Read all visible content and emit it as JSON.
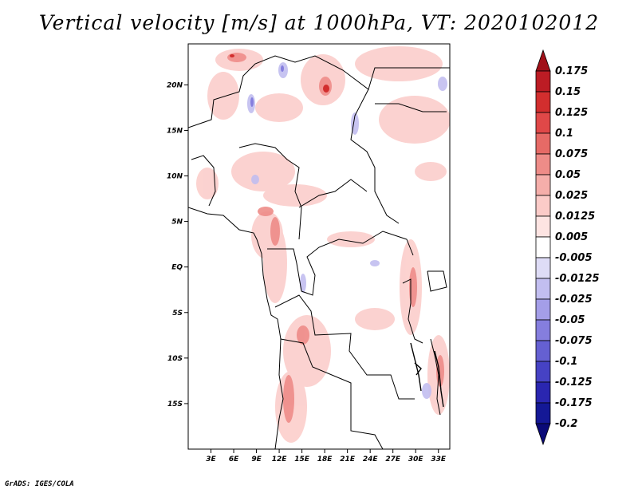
{
  "title": "Vertical velocity [m/s] at 1000hPa, VT: 2020102012",
  "footer": "GrADS: IGES/COLA",
  "map": {
    "lon_range": [
      0,
      34.5
    ],
    "lat_range": [
      -20,
      24.5
    ],
    "x_ticks": [
      "3E",
      "6E",
      "9E",
      "12E",
      "15E",
      "18E",
      "21E",
      "24E",
      "27E",
      "30E",
      "33E"
    ],
    "y_ticks": [
      "20N",
      "15N",
      "10N",
      "5N",
      "EQ",
      "5S",
      "10S",
      "15S"
    ]
  },
  "colorbar": {
    "labels": [
      "0.175",
      "0.15",
      "0.125",
      "0.1",
      "0.075",
      "0.05",
      "0.025",
      "0.0125",
      "0.005",
      "-0.005",
      "-0.0125",
      "-0.025",
      "-0.05",
      "-0.075",
      "-0.1",
      "-0.125",
      "-0.175",
      "-0.2"
    ],
    "colors": [
      "#a01018",
      "#bc1c24",
      "#d22e2e",
      "#e04848",
      "#e66a66",
      "#ee8c88",
      "#f5aeaa",
      "#fbcbc8",
      "#fde4e2",
      "#ffffff",
      "#dedcf6",
      "#c2bef0",
      "#a49ee8",
      "#857ede",
      "#6560d2",
      "#4642c4",
      "#2a26b0",
      "#141896",
      "#0a0a78"
    ]
  }
}
